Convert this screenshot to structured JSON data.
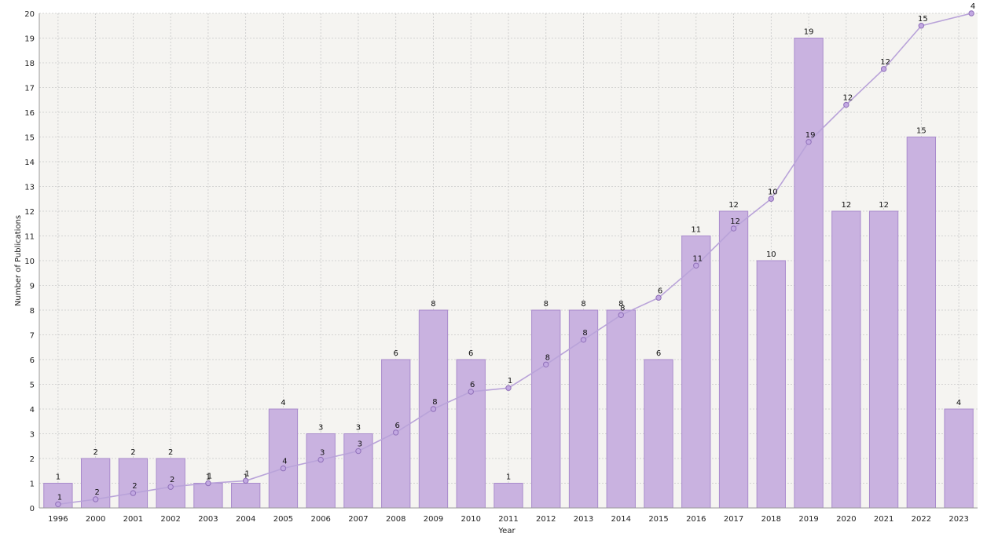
{
  "chart_data": {
    "type": "bar",
    "xlabel": "Year",
    "ylabel": "Number of Publications",
    "ylim": [
      0,
      20
    ],
    "yticks": [
      0,
      1,
      2,
      3,
      4,
      5,
      6,
      7,
      8,
      9,
      10,
      11,
      12,
      13,
      14,
      15,
      16,
      17,
      18,
      19,
      20
    ],
    "grid": true,
    "categories": [
      "1996",
      "2000",
      "2001",
      "2002",
      "2003",
      "2004",
      "2005",
      "2006",
      "2007",
      "2008",
      "2009",
      "2010",
      "2011",
      "2012",
      "2013",
      "2014",
      "2015",
      "2016",
      "2017",
      "2018",
      "2019",
      "2020",
      "2021",
      "2022",
      "2023"
    ],
    "series": [
      {
        "type": "bar",
        "values": [
          1,
          2,
          2,
          2,
          1,
          1,
          4,
          3,
          3,
          6,
          8,
          6,
          1,
          8,
          8,
          8,
          6,
          11,
          12,
          10,
          19,
          12,
          12,
          15,
          4
        ]
      },
      {
        "type": "line",
        "values": [
          0.15,
          0.35,
          0.6,
          0.85,
          1.0,
          1.1,
          1.6,
          1.95,
          2.3,
          3.05,
          4.0,
          4.7,
          4.85,
          5.8,
          6.8,
          7.8,
          8.5,
          9.8,
          11.3,
          12.5,
          14.8,
          16.3,
          17.75,
          19.5,
          20.0
        ],
        "labels": [
          "1",
          "2",
          "2",
          "2",
          "1",
          "1",
          "4",
          "3",
          "3",
          "6",
          "8",
          "6",
          "1",
          "8",
          "8",
          "8",
          "6",
          "11",
          "12",
          "10",
          "19",
          "12",
          "12",
          "15",
          "4"
        ]
      }
    ],
    "colors": {
      "bar_fill": "#c9b2e0",
      "bar_stroke": "#a98bcc",
      "line": "#b9a3d9",
      "marker_fill": "#c2a8e2",
      "marker_stroke": "#8f6fb8",
      "plot_background": "#f5f4f1",
      "grid": "#c8c8c8"
    }
  }
}
